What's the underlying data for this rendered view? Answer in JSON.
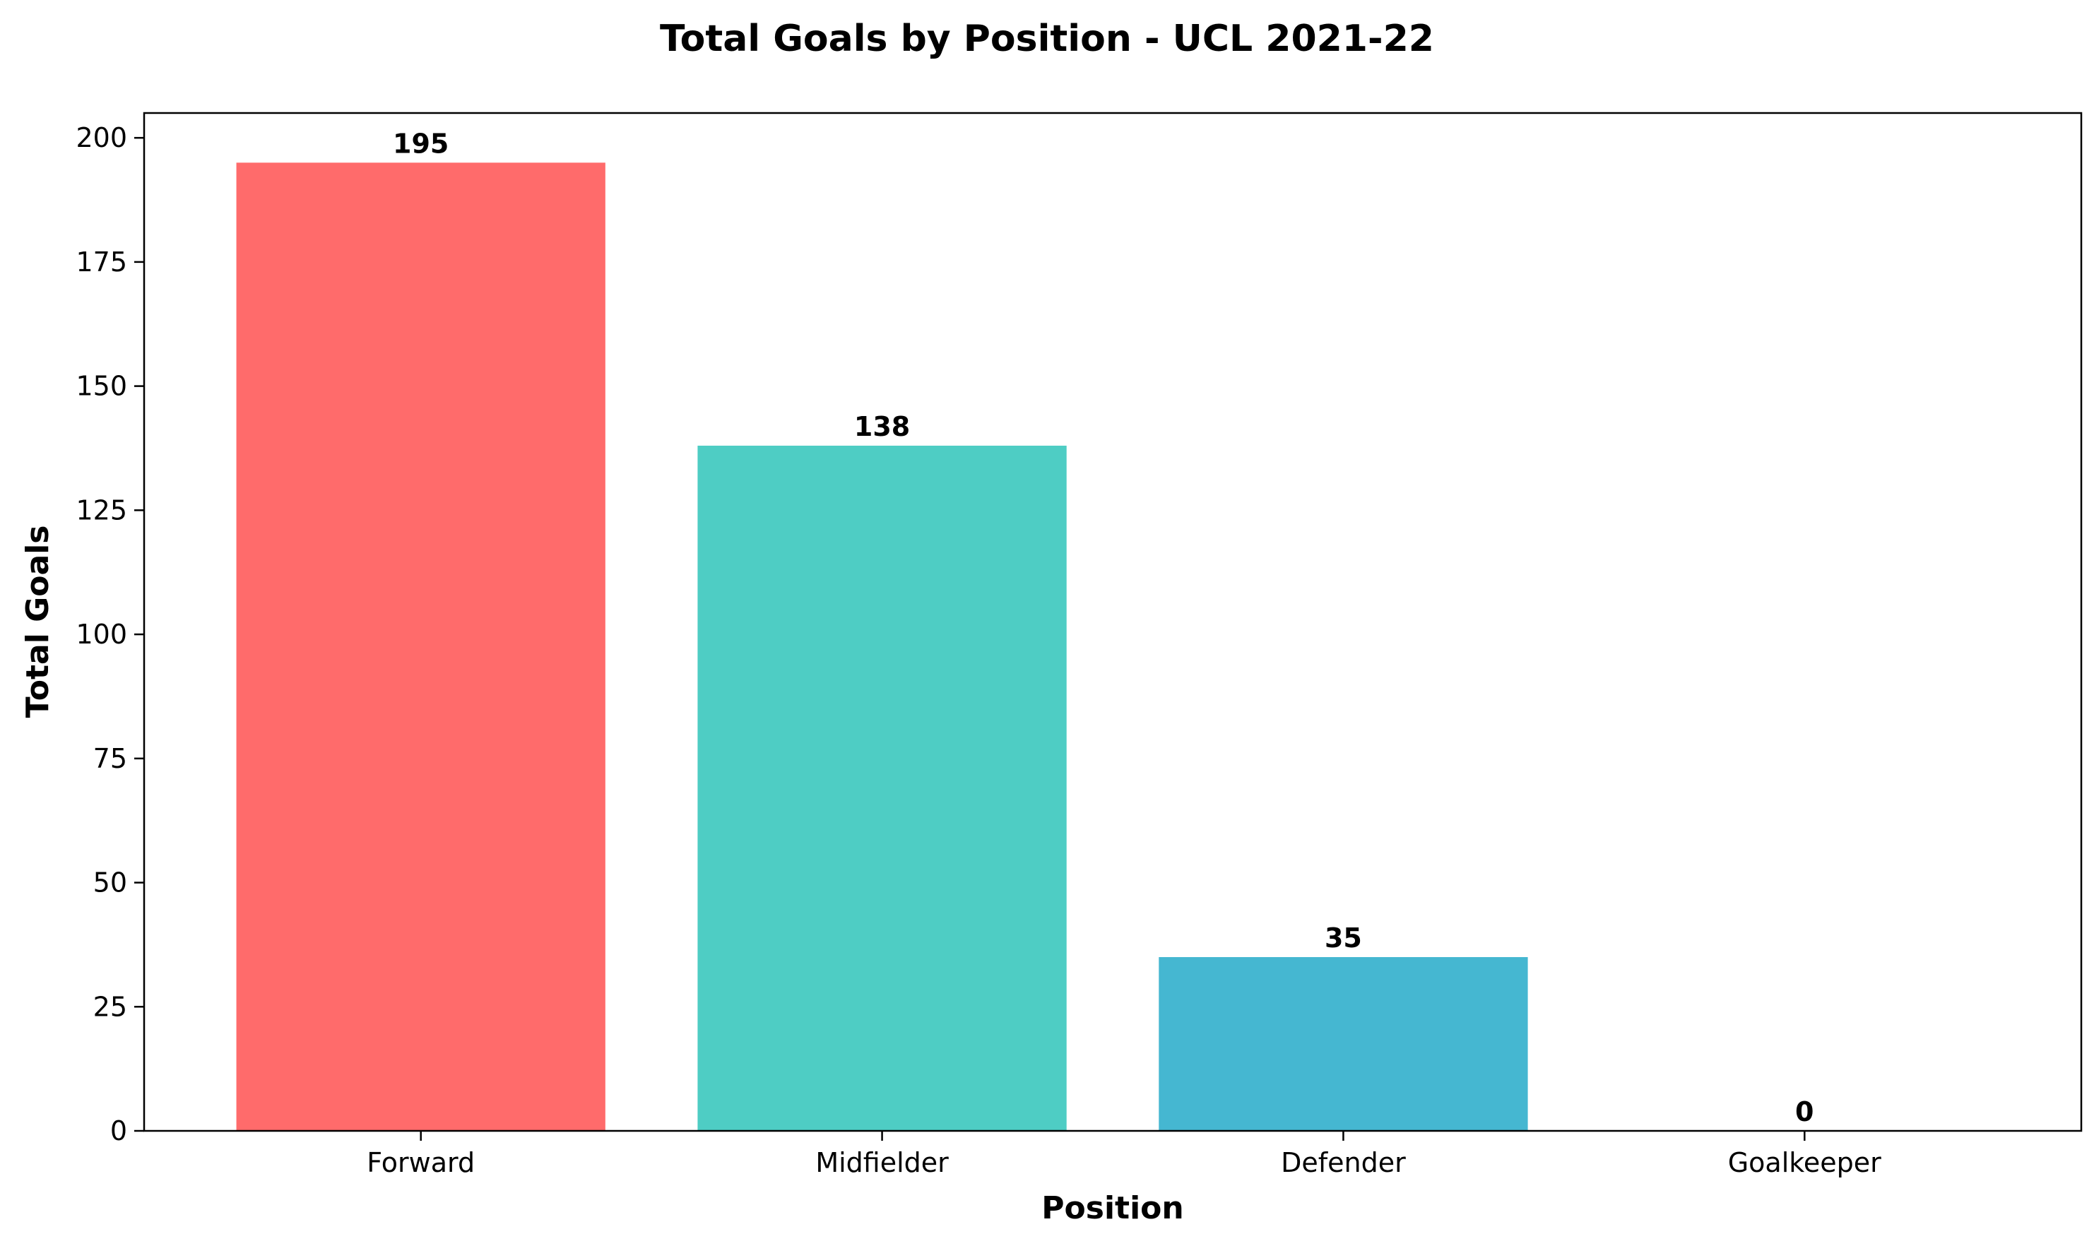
{
  "chart_data": {
    "type": "bar",
    "title": "Total Goals by Position - UCL 2021-22",
    "xlabel": "Position",
    "ylabel": "Total Goals",
    "categories": [
      "Forward",
      "Midfielder",
      "Defender",
      "Goalkeeper"
    ],
    "values": [
      195,
      138,
      35,
      0
    ],
    "data_labels": [
      "195",
      "138",
      "35",
      "0"
    ],
    "colors": [
      "#FF6B6B",
      "#4ECDC4",
      "#45B7D1",
      "#96CEB4"
    ],
    "ylim": [
      0,
      205
    ],
    "yticks": [
      0,
      25,
      50,
      75,
      100,
      125,
      150,
      175,
      200
    ],
    "ytick_labels": [
      "0",
      "25",
      "50",
      "75",
      "100",
      "125",
      "150",
      "175",
      "200"
    ],
    "grid": false,
    "legend": "none"
  }
}
